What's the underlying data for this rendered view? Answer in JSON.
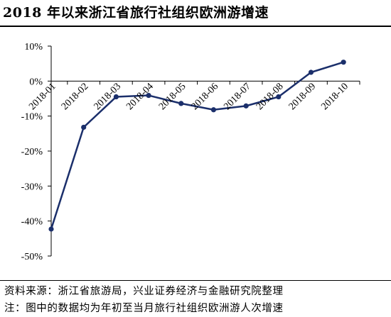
{
  "header": {
    "title": "2018 年以来浙江省旅行社组织欧洲游增速"
  },
  "footer": {
    "source": "资料来源：浙江省旅游局，兴业证券经济与金融研究院整理",
    "note": "注：图中的数据均为年初至当月旅行社组织欧洲游人次增速"
  },
  "chart_data": {
    "type": "line",
    "title": "2018 年以来浙江省旅行社组织欧洲游增速",
    "categories": [
      "2018-01",
      "2018-02",
      "2018-03",
      "2018-04",
      "2018-05",
      "2018-06",
      "2018-07",
      "2018-08",
      "2018-09",
      "2018-10"
    ],
    "series": [
      {
        "values": [
          -42.3,
          -13.2,
          -4.5,
          -4.1,
          -6.4,
          -8.2,
          -7.1,
          -4.5,
          2.5,
          5.4
        ],
        "color": "#1b2f6b"
      }
    ],
    "y_ticks": [
      "10%",
      "0%",
      "-10%",
      "-20%",
      "-30%",
      "-40%",
      "-50%"
    ],
    "ylim": [
      -50,
      10
    ],
    "y_unit": "%",
    "grid": false,
    "legend": "none"
  }
}
